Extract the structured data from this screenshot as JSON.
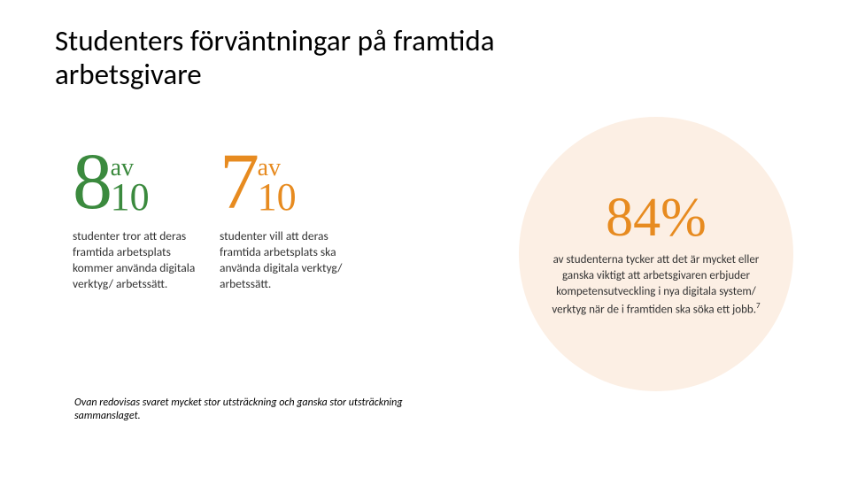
{
  "title": "Studenters förväntningar på framtida arbetsgivare",
  "colors": {
    "green": "#3b8a3e",
    "orange": "#e78b20",
    "circle_bg": "#fcefe4",
    "text_dark": "#323232",
    "background": "#ffffff"
  },
  "typography": {
    "title_fontsize": 33,
    "bignum_fontsize": 90,
    "av_fontsize": 28,
    "ten_fontsize": 44,
    "desc_fontsize": 13.5,
    "circle_pct_fontsize": 62,
    "circle_desc_fontsize": 13,
    "footnote_fontsize": 12,
    "serif_family": "Georgia, 'Times New Roman', serif",
    "sans_family": "Calibri, 'Segoe UI', Arial, sans-serif"
  },
  "stats": [
    {
      "numerator": "8",
      "connector": "av",
      "denominator": "10",
      "color": "#3b8a3e",
      "description": "studenter tror att deras framtida arbets­plats kommer använda digitala verktyg/ arbetssätt."
    },
    {
      "numerator": "7",
      "connector": "av",
      "denominator": "10",
      "color": "#e78b20",
      "description": "studenter vill att deras framtida arbets­plats ska använda digitala verktyg/ arbetssätt."
    }
  ],
  "circle": {
    "percent": "84%",
    "color": "#e78b20",
    "bg_color": "#fcefe4",
    "description": "av studenterna tycker att det är mycket eller ganska viktigt att arbetsgivaren erbjuder kompetens­utveckling i nya digitala system/ verktyg när de i framtiden ska söka ett jobb.",
    "sup": "7"
  },
  "footnote": "Ovan redovisas svaret mycket stor utsträckning och ganska stor utsträckning sammanslaget."
}
